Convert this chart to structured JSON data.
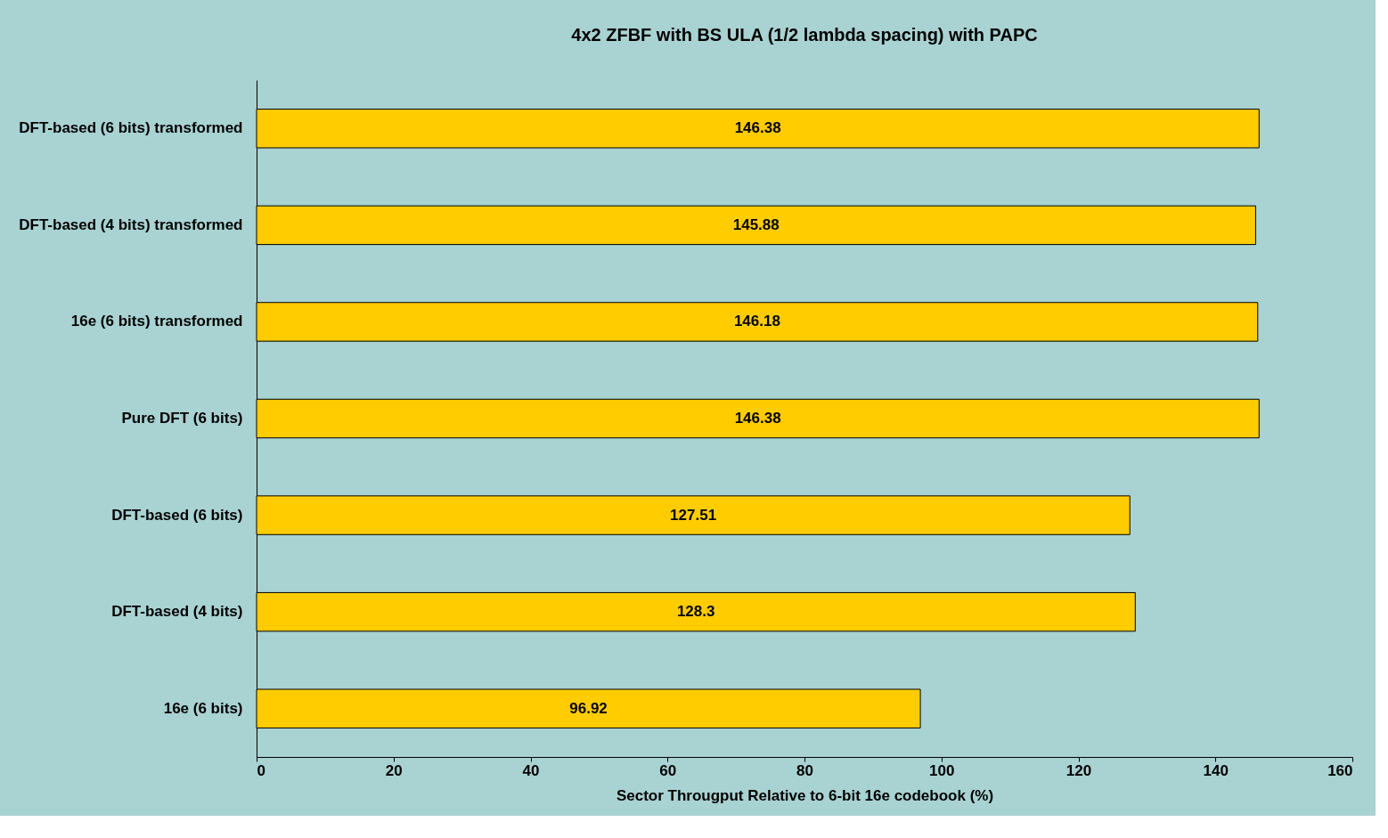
{
  "chart_data": {
    "type": "bar",
    "orientation": "horizontal",
    "title": "4x2 ZFBF with BS ULA (1/2 lambda spacing) with PAPC",
    "xlabel": "Sector Througput Relative to 6-bit 16e codebook (%)",
    "categories": [
      "DFT-based (6 bits) transformed",
      "DFT-based (4 bits) transformed",
      "16e (6 bits) transformed",
      "Pure DFT (6 bits)",
      "DFT-based (6 bits)",
      "DFT-based (4 bits)",
      "16e (6 bits)"
    ],
    "values": [
      146.38,
      145.88,
      146.18,
      146.38,
      127.51,
      128.3,
      96.92
    ],
    "color": "#ffcc00",
    "xlim": [
      0,
      160
    ],
    "xticks": [
      0,
      20,
      40,
      60,
      80,
      100,
      120,
      140,
      160
    ],
    "data_labels": true,
    "grid": false
  }
}
